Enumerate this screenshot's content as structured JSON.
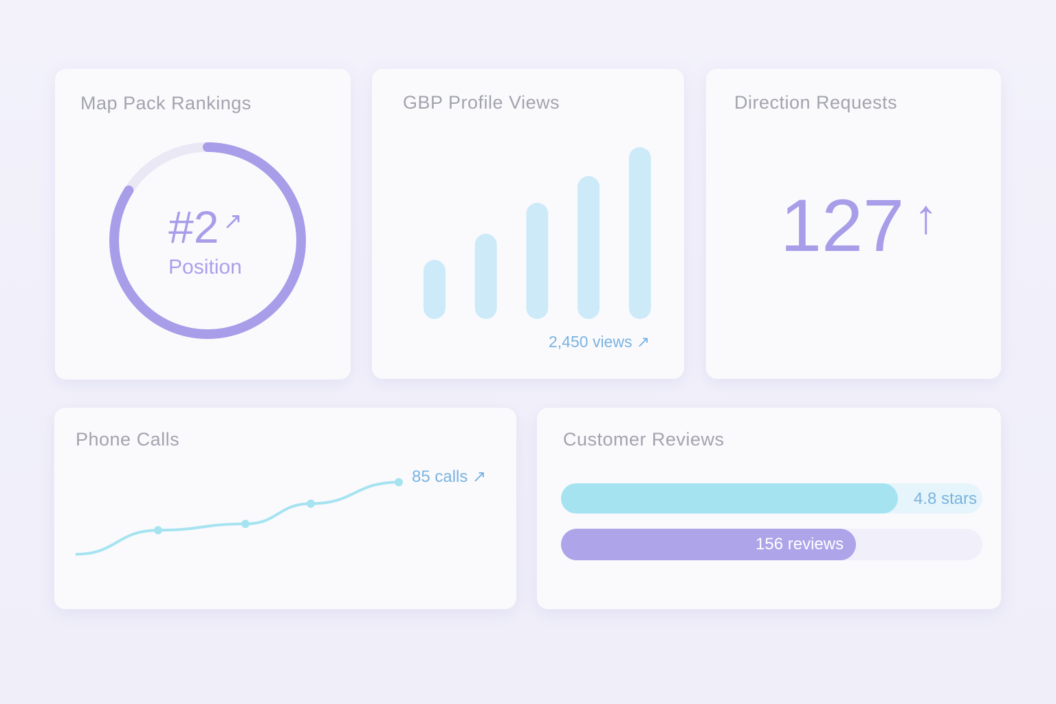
{
  "colors": {
    "purple": "#a79de8",
    "cyan": "#a6e3f0",
    "bar": "#cdeaf8",
    "text_blue": "#7ab3df"
  },
  "map_pack": {
    "title": "Map Pack Rankings",
    "rank": "#2",
    "arrow": "↗",
    "label": "Position",
    "progress": 0.84
  },
  "gbp_views": {
    "title": "GBP Profile Views",
    "caption": "2,450 views ↗",
    "bars": [
      86,
      124,
      169,
      208,
      250
    ]
  },
  "directions": {
    "title": "Direction Requests",
    "value": "127",
    "arrow": "↑"
  },
  "phone_calls": {
    "title": "Phone Calls",
    "caption": "85 calls ↗",
    "points": [
      [
        0,
        20
      ],
      [
        1,
        39
      ],
      [
        2,
        44
      ],
      [
        3,
        60
      ],
      [
        4,
        77
      ]
    ]
  },
  "reviews": {
    "title": "Customer Reviews",
    "stars_label": "4.8 stars",
    "stars_fill": 0.8,
    "reviews_label": "156 reviews",
    "reviews_fill": 0.7
  }
}
